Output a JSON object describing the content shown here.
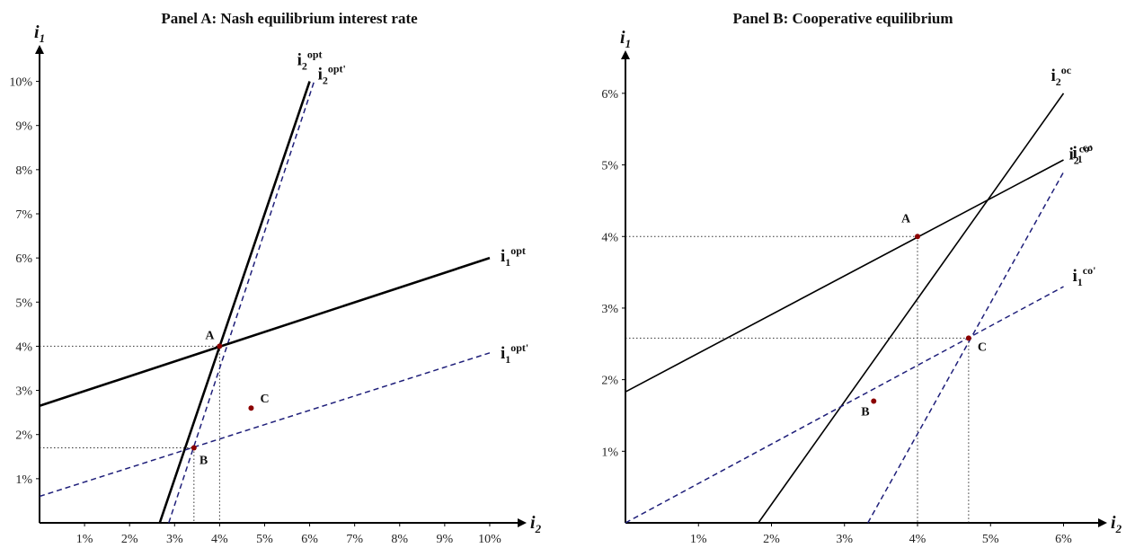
{
  "chart_data": [
    {
      "type": "line",
      "title": "Panel A: Nash equilibrium interest rate",
      "xlabel": {
        "base": "i",
        "sub": "2"
      },
      "ylabel": {
        "base": "i",
        "sub": "1"
      },
      "xlim": [
        0,
        10.5
      ],
      "ylim": [
        0,
        10.5
      ],
      "xticks": [
        1,
        2,
        3,
        4,
        5,
        6,
        7,
        8,
        9,
        10
      ],
      "yticks": [
        1,
        2,
        3,
        4,
        5,
        6,
        7,
        8,
        9,
        10
      ],
      "xticklabels": [
        "1%",
        "2%",
        "3%",
        "4%",
        "5%",
        "6%",
        "7%",
        "8%",
        "9%",
        "10%"
      ],
      "yticklabels": [
        "1%",
        "2%",
        "3%",
        "4%",
        "5%",
        "6%",
        "7%",
        "8%",
        "9%",
        "10%"
      ],
      "series": [
        {
          "name": "i2opt",
          "label_base": "i",
          "label_sub": "2",
          "label_sup": "opt",
          "style": "solid",
          "color": "#000000",
          "width": 2.6,
          "x": [
            2.67,
            6.0
          ],
          "y": [
            0,
            10.0
          ]
        },
        {
          "name": "i2opt'",
          "label_base": "i",
          "label_sub": "2",
          "label_sup": "opt'",
          "style": "dashed",
          "color": "#1f1f7a",
          "width": 1.5,
          "x": [
            2.87,
            6.1
          ],
          "y": [
            0,
            10.0
          ]
        },
        {
          "name": "i1opt",
          "label_base": "i",
          "label_sub": "1",
          "label_sup": "opt",
          "style": "solid",
          "color": "#000000",
          "width": 2.6,
          "x": [
            0,
            10.0
          ],
          "y": [
            2.65,
            6.0
          ]
        },
        {
          "name": "i1opt'",
          "label_base": "i",
          "label_sub": "1",
          "label_sup": "opt'",
          "style": "dashed",
          "color": "#1f1f7a",
          "width": 1.5,
          "x": [
            0,
            10.0
          ],
          "y": [
            0.6,
            3.85
          ]
        }
      ],
      "points": [
        {
          "label": "A",
          "x": 4.0,
          "y": 4.0
        },
        {
          "label": "B",
          "x": 3.43,
          "y": 1.7
        },
        {
          "label": "C",
          "x": 4.7,
          "y": 2.6
        }
      ],
      "reference_lines": [
        {
          "x": 4.0,
          "y": 4.0
        },
        {
          "x": 3.43,
          "y": 1.7
        }
      ]
    },
    {
      "type": "line",
      "title": "Panel B: Cooperative equilibrium",
      "xlabel": {
        "base": "i",
        "sub": "2"
      },
      "ylabel": {
        "base": "i",
        "sub": "1"
      },
      "xlim": [
        0,
        6.4
      ],
      "ylim": [
        0,
        6.4
      ],
      "xticks": [
        1,
        2,
        3,
        4,
        5,
        6
      ],
      "yticks": [
        1,
        2,
        3,
        4,
        5,
        6
      ],
      "xticklabels": [
        "1%",
        "2%",
        "3%",
        "4%",
        "5%",
        "6%"
      ],
      "yticklabels": [
        "1%",
        "2%",
        "3%",
        "4%",
        "5%",
        "6%"
      ],
      "series": [
        {
          "name": "i2oc",
          "label_base": "i",
          "label_sub": "2",
          "label_sup": "oc",
          "style": "solid",
          "color": "#000000",
          "width": 1.6,
          "x": [
            1.82,
            6.0
          ],
          "y": [
            0,
            6.0
          ]
        },
        {
          "name": "i1co",
          "label_base": "i",
          "label_sub": "1",
          "label_sup": "co",
          "style": "solid",
          "color": "#000000",
          "width": 1.6,
          "x": [
            0,
            6.0
          ],
          "y": [
            1.83,
            5.07
          ]
        },
        {
          "name": "i2co'",
          "label_base": "i",
          "label_sub": "2",
          "label_sup": "co'",
          "style": "dashed",
          "color": "#1f1f7a",
          "width": 1.5,
          "x": [
            3.32,
            6.0
          ],
          "y": [
            0,
            4.9
          ]
        },
        {
          "name": "i1co'",
          "label_base": "i",
          "label_sub": "1",
          "label_sup": "co'",
          "style": "dashed",
          "color": "#1f1f7a",
          "width": 1.5,
          "x": [
            0,
            6.0
          ],
          "y": [
            0,
            3.3
          ]
        }
      ],
      "points": [
        {
          "label": "A",
          "x": 4.0,
          "y": 4.0
        },
        {
          "label": "B",
          "x": 3.4,
          "y": 1.7
        },
        {
          "label": "C",
          "x": 4.7,
          "y": 2.58
        }
      ],
      "reference_lines": [
        {
          "x": 4.0,
          "y": 4.0
        },
        {
          "x": 4.7,
          "y": 2.58
        }
      ]
    }
  ]
}
